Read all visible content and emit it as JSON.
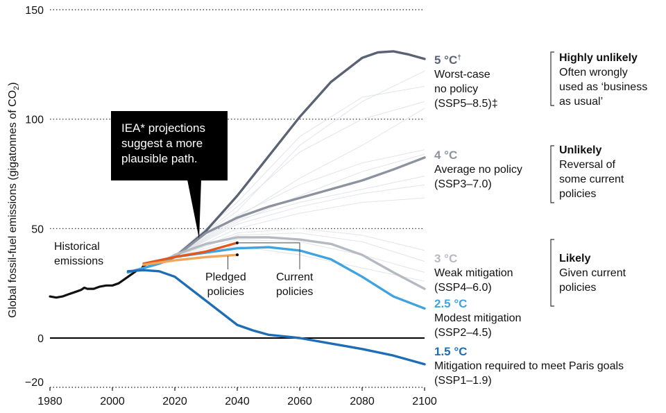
{
  "chart_data": {
    "type": "line",
    "ylabel": "Global fossil-fuel emissions (gigatonnes of CO",
    "ylabel_sub": "2",
    "ylabel_close": ")",
    "xlim": [
      1980,
      2100
    ],
    "ylim": [
      -20,
      150
    ],
    "xticks": [
      1980,
      2000,
      2020,
      2040,
      2060,
      2080,
      2100
    ],
    "yticks": [
      150,
      100,
      50,
      0,
      -20
    ],
    "dotted_gridlines": [
      150,
      100,
      50
    ],
    "zero_line": 0,
    "series": [
      {
        "name": "Historical emissions",
        "color": "#111111",
        "width": 3.2,
        "points": [
          [
            1980,
            19
          ],
          [
            1982,
            18.5
          ],
          [
            1984,
            19
          ],
          [
            1986,
            20
          ],
          [
            1988,
            21
          ],
          [
            1990,
            22
          ],
          [
            1991,
            23
          ],
          [
            1992,
            22.5
          ],
          [
            1994,
            22.5
          ],
          [
            1996,
            23.5
          ],
          [
            1998,
            24
          ],
          [
            2000,
            24
          ],
          [
            2002,
            25
          ],
          [
            2004,
            27
          ],
          [
            2006,
            29
          ],
          [
            2008,
            31
          ],
          [
            2009,
            31
          ],
          [
            2010,
            33
          ],
          [
            2012,
            34.5
          ],
          [
            2014,
            35
          ],
          [
            2016,
            35
          ],
          [
            2018,
            36.5
          ]
        ]
      },
      {
        "name": "5 °C worst-case no policy (SSP5-8.5)",
        "color": "#5a6274",
        "width": 3.4,
        "points": [
          [
            2005,
            30
          ],
          [
            2010,
            32
          ],
          [
            2015,
            34
          ],
          [
            2020,
            37
          ],
          [
            2030,
            49
          ],
          [
            2040,
            65
          ],
          [
            2050,
            83
          ],
          [
            2060,
            101
          ],
          [
            2070,
            117
          ],
          [
            2080,
            128
          ],
          [
            2085,
            130.5
          ],
          [
            2090,
            131
          ],
          [
            2095,
            129.5
          ],
          [
            2100,
            127.5
          ]
        ]
      },
      {
        "name": "4 °C average no policy (SSP3-7.0)",
        "color": "#8c929e",
        "width": 3.4,
        "points": [
          [
            2005,
            30
          ],
          [
            2010,
            32
          ],
          [
            2015,
            34
          ],
          [
            2020,
            37
          ],
          [
            2030,
            48
          ],
          [
            2040,
            55
          ],
          [
            2050,
            60
          ],
          [
            2060,
            64
          ],
          [
            2070,
            68
          ],
          [
            2080,
            72
          ],
          [
            2090,
            77
          ],
          [
            2100,
            82.5
          ]
        ]
      },
      {
        "name": "3 °C weak mitigation (SSP4-6.0)",
        "color": "#b5b9c1",
        "width": 3.4,
        "points": [
          [
            2005,
            30
          ],
          [
            2010,
            32
          ],
          [
            2015,
            34
          ],
          [
            2020,
            38
          ],
          [
            2030,
            43
          ],
          [
            2040,
            46
          ],
          [
            2050,
            46
          ],
          [
            2060,
            45
          ],
          [
            2070,
            43
          ],
          [
            2080,
            38
          ],
          [
            2090,
            30
          ],
          [
            2100,
            22.5
          ]
        ]
      },
      {
        "name": "2.5 °C modest mitigation (SSP2-4.5)",
        "color": "#3fa3de",
        "width": 3.4,
        "points": [
          [
            2005,
            30
          ],
          [
            2010,
            32
          ],
          [
            2015,
            34
          ],
          [
            2020,
            37
          ],
          [
            2030,
            39
          ],
          [
            2040,
            41
          ],
          [
            2050,
            41.5
          ],
          [
            2060,
            40
          ],
          [
            2070,
            36
          ],
          [
            2080,
            28
          ],
          [
            2090,
            19
          ],
          [
            2100,
            13.5
          ]
        ]
      },
      {
        "name": "1.5 °C mitigation required to meet Paris goals (SSP1-1.9)",
        "color": "#1f6db4",
        "width": 3.4,
        "points": [
          [
            2005,
            30.5
          ],
          [
            2010,
            31
          ],
          [
            2015,
            30.5
          ],
          [
            2020,
            28
          ],
          [
            2030,
            17
          ],
          [
            2040,
            6
          ],
          [
            2045,
            3.5
          ],
          [
            2050,
            1.5
          ],
          [
            2060,
            0
          ],
          [
            2070,
            -2.5
          ],
          [
            2080,
            -5
          ],
          [
            2090,
            -8
          ],
          [
            2100,
            -12
          ]
        ]
      },
      {
        "name": "Current policies (IEA)",
        "color": "#e2571e",
        "width": 3.4,
        "points": [
          [
            2010,
            34
          ],
          [
            2020,
            37
          ],
          [
            2030,
            39.5
          ],
          [
            2040,
            43.5
          ]
        ]
      },
      {
        "name": "Pledged policies (IEA)",
        "color": "#f2a65a",
        "width": 3.4,
        "points": [
          [
            2010,
            33.5
          ],
          [
            2020,
            35.5
          ],
          [
            2030,
            37
          ],
          [
            2040,
            38
          ]
        ]
      }
    ],
    "background_scenarios_color": "#e1e4ea",
    "background_scenarios": [
      [
        [
          2020,
          38
        ],
        [
          2040,
          58
        ],
        [
          2060,
          88
        ],
        [
          2080,
          108
        ],
        [
          2100,
          122
        ]
      ],
      [
        [
          2020,
          38
        ],
        [
          2040,
          62
        ],
        [
          2060,
          92
        ],
        [
          2080,
          110
        ],
        [
          2100,
          115
        ]
      ],
      [
        [
          2020,
          37
        ],
        [
          2040,
          60
        ],
        [
          2060,
          85
        ],
        [
          2080,
          100
        ],
        [
          2100,
          108
        ]
      ],
      [
        [
          2020,
          37
        ],
        [
          2040,
          55
        ],
        [
          2060,
          73
        ],
        [
          2080,
          88
        ],
        [
          2100,
          105
        ]
      ],
      [
        [
          2020,
          37
        ],
        [
          2040,
          56
        ],
        [
          2060,
          70
        ],
        [
          2080,
          80
        ],
        [
          2100,
          86
        ]
      ],
      [
        [
          2020,
          37
        ],
        [
          2040,
          53
        ],
        [
          2060,
          65
        ],
        [
          2080,
          76
        ],
        [
          2100,
          84
        ]
      ],
      [
        [
          2020,
          37
        ],
        [
          2040,
          54
        ],
        [
          2060,
          62
        ],
        [
          2080,
          68
        ],
        [
          2100,
          74
        ]
      ],
      [
        [
          2020,
          37
        ],
        [
          2040,
          52
        ],
        [
          2060,
          60
        ],
        [
          2080,
          66
        ],
        [
          2100,
          70
        ]
      ],
      [
        [
          2020,
          37
        ],
        [
          2040,
          50
        ],
        [
          2060,
          57
        ],
        [
          2080,
          62
        ],
        [
          2100,
          64
        ]
      ],
      [
        [
          2020,
          37
        ],
        [
          2040,
          48
        ],
        [
          2060,
          50
        ],
        [
          2080,
          47
        ],
        [
          2100,
          40
        ]
      ],
      [
        [
          2020,
          37
        ],
        [
          2040,
          47
        ],
        [
          2060,
          48
        ],
        [
          2080,
          44
        ],
        [
          2100,
          35
        ]
      ],
      [
        [
          2020,
          37
        ],
        [
          2040,
          45
        ],
        [
          2060,
          44
        ],
        [
          2080,
          38
        ],
        [
          2100,
          30
        ]
      ],
      [
        [
          2020,
          37
        ],
        [
          2040,
          42
        ],
        [
          2060,
          38
        ],
        [
          2080,
          32
        ],
        [
          2100,
          26
        ]
      ]
    ],
    "iea_markers": [
      [
        2040,
        43.5
      ],
      [
        2040,
        38
      ]
    ],
    "annotations": {
      "historical": [
        "Historical",
        "emissions"
      ],
      "pledged": [
        "Pledged",
        "policies"
      ],
      "current": [
        "Current",
        "policies"
      ]
    }
  },
  "callout": {
    "lines": [
      "IEA* projections",
      "suggest a more",
      "plausible path."
    ]
  },
  "scenario_labels": [
    {
      "temp": "5 °C",
      "temp_mark": "†",
      "color": "#5a6274",
      "lines": [
        "Worst-case",
        "no policy",
        "(SSP5–8.5)‡"
      ]
    },
    {
      "temp": "4 °C",
      "temp_mark": "",
      "color": "#8c929e",
      "lines": [
        "Average no policy",
        "(SSP3–7.0)"
      ]
    },
    {
      "temp": "3 °C",
      "temp_mark": "",
      "color": "#b5b9c1",
      "lines": [
        "Weak mitigation",
        "(SSP4–6.0)"
      ]
    },
    {
      "temp": "2.5 °C",
      "temp_mark": "",
      "color": "#3fa3de",
      "lines": [
        "Modest mitigation",
        "(SSP2–4.5)"
      ]
    },
    {
      "temp": "1.5 °C",
      "temp_mark": "",
      "color": "#1f6db4",
      "lines": [
        "Mitigation required to meet Paris goals",
        "(SSP1–1.9)"
      ]
    }
  ],
  "likelihood_groups": [
    {
      "title": "Highly unlikely",
      "lines": [
        "Often wrongly",
        "used as ‘business",
        "as usual’"
      ]
    },
    {
      "title": "Unlikely",
      "lines": [
        "Reversal of",
        "some current",
        "policies"
      ]
    },
    {
      "title": "Likely",
      "lines": [
        "Given current",
        "policies"
      ]
    }
  ]
}
